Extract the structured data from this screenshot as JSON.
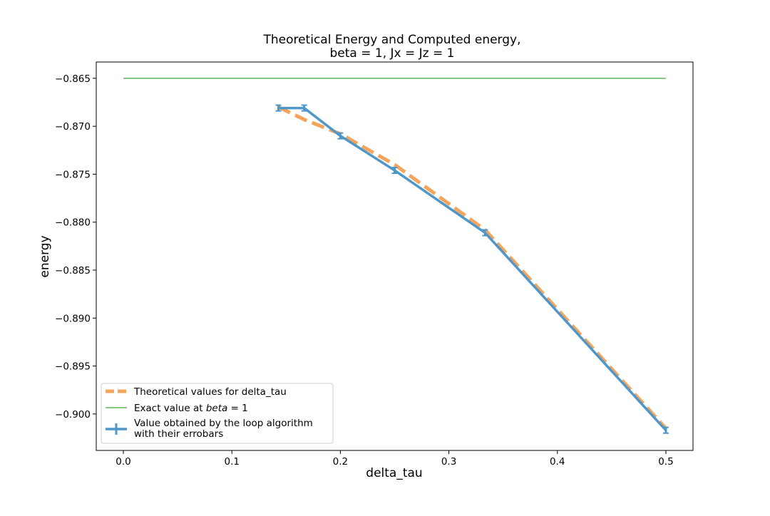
{
  "chart_data": {
    "type": "line",
    "title_line1": "Theoretical Energy and Computed energy,",
    "title_line2": "beta = 1, Jx = Jz = 1",
    "xlabel": "delta_tau",
    "ylabel": "energy",
    "xlim": [
      -0.025,
      0.525
    ],
    "ylim": [
      -0.9038,
      -0.8633
    ],
    "grid": false,
    "legend_position": "lower-left",
    "x_ticks": [
      0.0,
      0.1,
      0.2,
      0.3,
      0.4,
      0.5
    ],
    "x_tick_labels": [
      "0.0",
      "0.1",
      "0.2",
      "0.3",
      "0.4",
      "0.5"
    ],
    "y_ticks": [
      -0.865,
      -0.87,
      -0.875,
      -0.88,
      -0.885,
      -0.89,
      -0.895,
      -0.9
    ],
    "y_tick_labels": [
      "−0.865",
      "−0.870",
      "−0.875",
      "−0.880",
      "−0.885",
      "−0.890",
      "−0.895",
      "−0.900"
    ],
    "series": [
      {
        "name": "Theoretical values for delta_tau",
        "style": "dashed",
        "color": "#f5a45c",
        "x": [
          0.1429,
          0.1667,
          0.2,
          0.25,
          0.3333,
          0.5
        ],
        "y": [
          -0.868,
          -0.8693,
          -0.8708,
          -0.874,
          -0.8808,
          -0.9015
        ]
      },
      {
        "name": "Exact value at",
        "name_italic": "beta",
        "name_suffix": " = 1",
        "style": "solid-thin",
        "color": "#5cb85c",
        "x": [
          0.0,
          0.5
        ],
        "y": [
          -0.865,
          -0.865
        ]
      },
      {
        "name": "Value obtained by the loop algorithm",
        "name_line2": " with their errobars",
        "style": "errorbar",
        "color": "#4f97c9",
        "x": [
          0.1429,
          0.1667,
          0.2,
          0.25,
          0.3333,
          0.5
        ],
        "y": [
          -0.8681,
          -0.8681,
          -0.871,
          -0.8746,
          -0.8811,
          -0.9017
        ],
        "yerr": [
          0.0003,
          0.0003,
          0.0003,
          0.0003,
          0.0003,
          0.0003
        ]
      }
    ]
  }
}
